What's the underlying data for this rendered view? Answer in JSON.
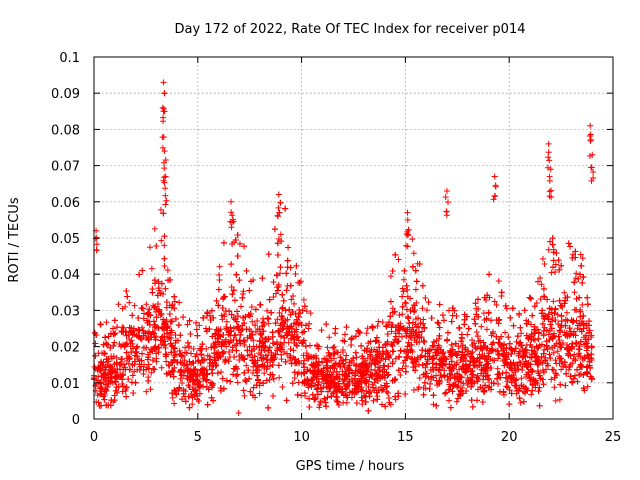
{
  "chart_data": {
    "type": "scatter",
    "title": "Day 172 of 2022, Rate Of TEC Index for receiver p014",
    "xlabel": "GPS time / hours",
    "ylabel": "ROTI / TECUs",
    "xlim": [
      0,
      25
    ],
    "ylim": [
      0,
      0.1
    ],
    "x_ticks": [
      0,
      5,
      10,
      15,
      20,
      25
    ],
    "x_tick_labels": [
      "0",
      "5",
      "10",
      "15",
      "20",
      "25"
    ],
    "y_ticks": [
      0,
      0.01,
      0.02,
      0.03,
      0.04,
      0.05,
      0.06,
      0.07,
      0.08,
      0.09,
      0.1
    ],
    "y_tick_labels": [
      "0",
      "0.01",
      "0.02",
      "0.03",
      "0.04",
      "0.05",
      "0.06",
      "0.07",
      "0.08",
      "0.09",
      "0.1"
    ],
    "grid": true,
    "marker": "+",
    "marker_color": "#ff0000",
    "series_summary": {
      "name": "p014 ROTI",
      "x_range_hours": [
        0,
        24
      ],
      "typical_range": [
        0.005,
        0.025
      ],
      "notable_peaks": [
        {
          "x": 3.35,
          "y": 0.093
        },
        {
          "x": 3.35,
          "y": 0.085
        },
        {
          "x": 3.4,
          "y": 0.074
        },
        {
          "x": 3.45,
          "y": 0.067
        },
        {
          "x": 6.6,
          "y": 0.06
        },
        {
          "x": 8.9,
          "y": 0.062
        },
        {
          "x": 15.1,
          "y": 0.057
        },
        {
          "x": 17.0,
          "y": 0.063
        },
        {
          "x": 19.3,
          "y": 0.067
        },
        {
          "x": 21.9,
          "y": 0.076
        },
        {
          "x": 22.0,
          "y": 0.069
        },
        {
          "x": 23.9,
          "y": 0.081
        },
        {
          "x": 24.0,
          "y": 0.073
        },
        {
          "x": 0.1,
          "y": 0.052
        }
      ]
    }
  }
}
